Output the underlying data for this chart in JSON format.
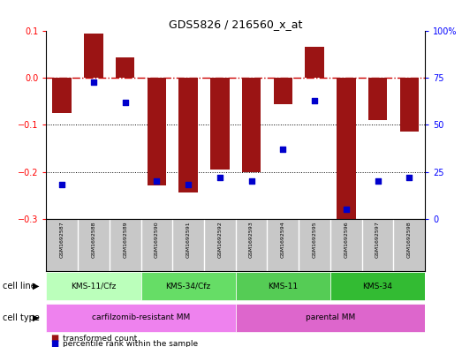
{
  "title": "GDS5826 / 216560_x_at",
  "samples": [
    "GSM1692587",
    "GSM1692588",
    "GSM1692589",
    "GSM1692590",
    "GSM1692591",
    "GSM1692592",
    "GSM1692593",
    "GSM1692594",
    "GSM1692595",
    "GSM1692596",
    "GSM1692597",
    "GSM1692598"
  ],
  "bar_values": [
    -0.075,
    0.095,
    0.045,
    -0.23,
    -0.245,
    -0.195,
    -0.2,
    -0.055,
    0.067,
    -0.305,
    -0.09,
    -0.115
  ],
  "dot_values": [
    18,
    73,
    62,
    20,
    18,
    22,
    20,
    37,
    63,
    5,
    20,
    22
  ],
  "bar_color": "#9B1414",
  "dot_color": "#0000CC",
  "ylim_left": [
    -0.3,
    0.1
  ],
  "ylim_right": [
    0,
    100
  ],
  "yticks_left": [
    0.1,
    0.0,
    -0.1,
    -0.2,
    -0.3
  ],
  "yticks_right": [
    100,
    75,
    50,
    25,
    0
  ],
  "cell_line_groups": [
    {
      "label": "KMS-11/Cfz",
      "start": 0,
      "end": 3,
      "color": "#BBFFBB"
    },
    {
      "label": "KMS-34/Cfz",
      "start": 3,
      "end": 6,
      "color": "#66DD66"
    },
    {
      "label": "KMS-11",
      "start": 6,
      "end": 9,
      "color": "#55CC55"
    },
    {
      "label": "KMS-34",
      "start": 9,
      "end": 12,
      "color": "#33BB33"
    }
  ],
  "cell_type_groups": [
    {
      "label": "carfilzomib-resistant MM",
      "start": 0,
      "end": 6,
      "color": "#EE82EE"
    },
    {
      "label": "parental MM",
      "start": 6,
      "end": 12,
      "color": "#DD66CC"
    }
  ],
  "cell_line_label": "cell line",
  "cell_type_label": "cell type",
  "legend_bar_label": "transformed count",
  "legend_dot_label": "percentile rank within the sample",
  "background_color": "#FFFFFF",
  "sample_bg_color": "#C8C8C8"
}
